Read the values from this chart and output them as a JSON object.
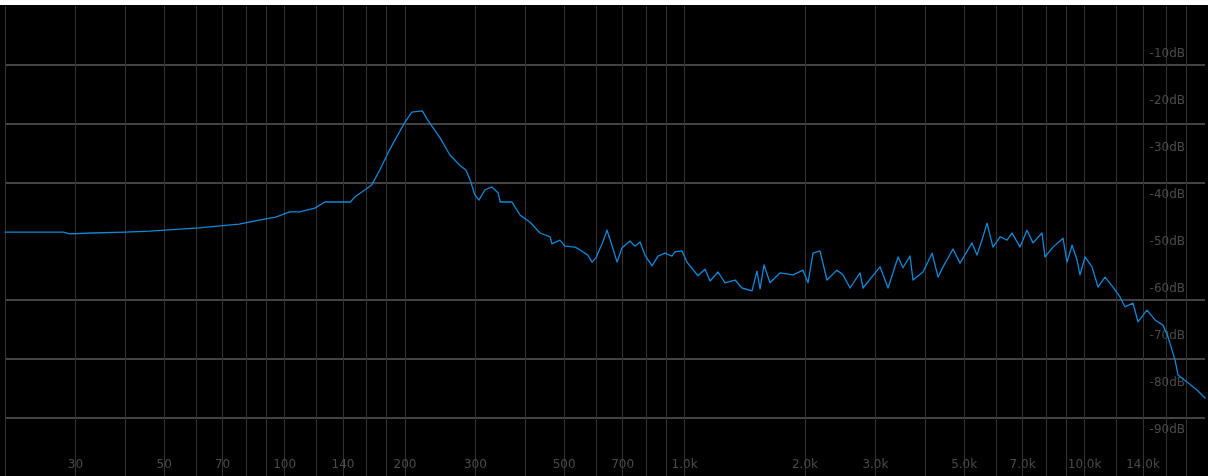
{
  "chart_data": {
    "type": "line",
    "series": [
      {
        "color": "#0f88d8",
        "x": [
          20,
          28,
          29,
          33,
          40,
          46,
          56,
          61,
          69,
          77,
          87,
          95,
          103,
          109,
          119,
          126,
          146,
          150,
          159,
          165,
          173,
          183,
          192,
          200,
          208,
          221,
          228,
          245,
          259,
          275,
          284,
          291,
          299,
          306,
          317,
          330,
          342,
          346,
          370,
          388,
          411,
          435,
          461,
          466,
          488,
          502,
          532,
          548,
          573,
          587,
          600,
          622,
          640,
          658,
          678,
          697,
          730,
          752,
          774,
          796,
          829,
          858,
          893,
          930,
          946,
          985,
          1014,
          1080,
          1125,
          1158,
          1212,
          1262,
          1337,
          1392,
          1474,
          1517,
          1544,
          1580,
          1635,
          1732,
          1867,
          1977,
          2035,
          2094,
          2180,
          2270,
          2404,
          2489,
          2592,
          2745,
          2793,
          3080,
          3226,
          3417,
          3516,
          3660,
          3724,
          3945,
          4157,
          4302,
          4427,
          4688,
          4882,
          5231,
          5383,
          5541,
          5702,
          5902,
          6146,
          6397,
          6586,
          6895,
          7178,
          7430,
          7826,
          7962,
          8337,
          8831,
          9038,
          9304,
          9572,
          9739,
          10024,
          10435,
          10803,
          11247,
          11776,
          12262,
          12619,
          13213,
          13601,
          14322,
          14997,
          15704,
          16164,
          16827,
          17122,
          18032,
          19099,
          20000
        ],
        "values": [
          -48.1,
          -48.1,
          -48.5,
          -48.3,
          -48.1,
          -47.9,
          -47.4,
          -47.2,
          -46.8,
          -46.4,
          -45.5,
          -44.9,
          -43.8,
          -43.8,
          -43.0,
          -41.7,
          -41.7,
          -40.6,
          -39.1,
          -38.1,
          -34.9,
          -30.6,
          -27.4,
          -24.7,
          -22.6,
          -22.3,
          -24.3,
          -28.1,
          -31.7,
          -34.0,
          -34.9,
          -37.0,
          -40.2,
          -41.3,
          -39.1,
          -38.5,
          -39.8,
          -41.7,
          -41.7,
          -44.5,
          -46.0,
          -48.3,
          -49.1,
          -50.6,
          -49.8,
          -51.1,
          -51.3,
          -51.9,
          -53.0,
          -54.5,
          -53.6,
          -50.6,
          -47.7,
          -50.9,
          -54.5,
          -51.5,
          -50.0,
          -51.1,
          -50.2,
          -53.0,
          -55.3,
          -53.2,
          -52.6,
          -53.2,
          -52.3,
          -52.1,
          -54.5,
          -57.4,
          -56.0,
          -58.5,
          -56.6,
          -58.9,
          -58.3,
          -60.0,
          -60.6,
          -56.4,
          -60.2,
          -55.1,
          -58.9,
          -56.8,
          -57.2,
          -56.2,
          -58.9,
          -52.6,
          -52.1,
          -58.3,
          -56.2,
          -57.2,
          -60.0,
          -56.8,
          -60.0,
          -55.5,
          -60.0,
          -53.4,
          -55.7,
          -53.2,
          -58.3,
          -56.6,
          -52.6,
          -57.7,
          -55.5,
          -51.7,
          -54.7,
          -50.4,
          -53.0,
          -49.8,
          -46.2,
          -51.3,
          -49.1,
          -49.8,
          -48.3,
          -51.3,
          -47.7,
          -50.4,
          -48.3,
          -53.4,
          -51.3,
          -49.4,
          -54.5,
          -50.9,
          -54.0,
          -57.2,
          -53.4,
          -55.5,
          -59.8,
          -57.7,
          -59.8,
          -61.9,
          -64.0,
          -63.2,
          -67.2,
          -64.7,
          -66.8,
          -67.9,
          -70.4,
          -75.3,
          -78.5,
          -80.0,
          -81.7,
          -83.4
        ]
      }
    ],
    "log": "x",
    "xlim": [
      20,
      20000
    ],
    "xticks": [
      {
        "value": 20,
        "label": null
      },
      30,
      {
        "value": 40,
        "label": null
      },
      50,
      {
        "value": 60,
        "label": null
      },
      70,
      {
        "value": 80,
        "label": null
      },
      {
        "value": 90,
        "label": null
      },
      100,
      {
        "value": 120,
        "label": null
      },
      140,
      {
        "value": 160,
        "label": null
      },
      {
        "value": 180,
        "label": null
      },
      200,
      300,
      {
        "value": 400,
        "label": null
      },
      500,
      {
        "value": 600,
        "label": null
      },
      700,
      {
        "value": 800,
        "label": null
      },
      {
        "value": 900,
        "label": null
      },
      {
        "value": 1000,
        "label": "1.0k"
      },
      {
        "value": 2000,
        "label": "2.0k"
      },
      {
        "value": 3000,
        "label": "3.0k"
      },
      {
        "value": 4000,
        "label": null
      },
      {
        "value": 5000,
        "label": "5.0k"
      },
      {
        "value": 6000,
        "label": null
      },
      {
        "value": 7000,
        "label": "7.0k"
      },
      {
        "value": 8000,
        "label": null
      },
      {
        "value": 9000,
        "label": null
      },
      {
        "value": 10000,
        "label": "10.0k"
      },
      {
        "value": 12000,
        "label": null
      },
      {
        "value": 14000,
        "label": "14.0k"
      },
      {
        "value": 16000,
        "label": null
      },
      {
        "value": 18000,
        "label": null
      }
    ],
    "ylim": [
      -100,
      0
    ],
    "yticks": [
      {
        "value": -10,
        "label": "-10dB"
      },
      {
        "value": -12.5,
        "label": null
      },
      {
        "value": -20,
        "label": "-20dB"
      },
      {
        "value": -25,
        "label": null
      },
      {
        "value": -30,
        "label": "-30dB"
      },
      {
        "value": -37.5,
        "label": null
      },
      {
        "value": -40,
        "label": "-40dB"
      },
      {
        "value": -50,
        "label": "-50dB"
      },
      {
        "value": -60,
        "label": "-60dB"
      },
      {
        "value": -62.5,
        "label": null
      },
      {
        "value": -70,
        "label": "-70dB"
      },
      {
        "value": -75,
        "label": null
      },
      {
        "value": -80,
        "label": "-80dB"
      },
      {
        "value": -87.5,
        "label": null
      },
      {
        "value": -90,
        "label": "-90dB"
      }
    ],
    "grid": true,
    "marker": "none",
    "line_style": "solid"
  }
}
